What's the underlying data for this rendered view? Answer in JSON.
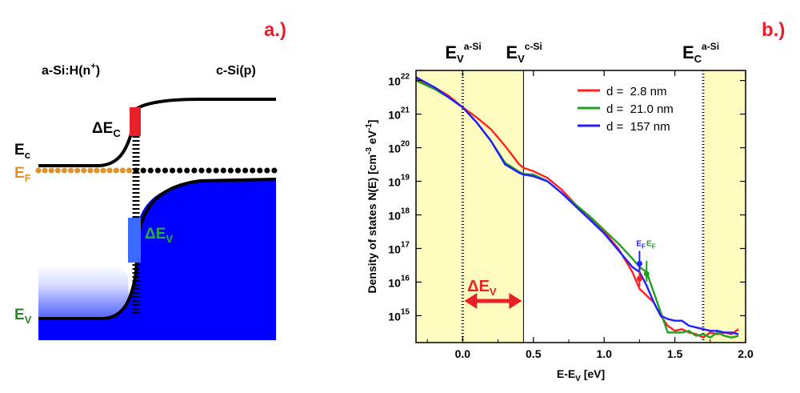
{
  "panel_a": {
    "label": "a.)",
    "left_material": "a-Si:H(n",
    "left_material_sup": "+",
    "left_material_end": ")",
    "right_material": "c-Si(p)",
    "ec_label": "E",
    "ec_sub": "c",
    "ef_label": "E",
    "ef_sub": "F",
    "ev_label": "E",
    "ev_sub": "V",
    "delta_ec": "ΔE",
    "delta_ec_sub": "C",
    "delta_ev": "ΔE",
    "delta_ev_sub": "V",
    "colors": {
      "label_red": "#e8202a",
      "ef_orange": "#e0922a",
      "ev_green": "#2a8a2a",
      "delta_ev_green": "#22b43c",
      "band_blue": "#0000ff",
      "offset_red": "#e8202a"
    }
  },
  "panel_b": {
    "label": "b.)",
    "marker_labels": [
      {
        "main": "E",
        "sub": "V",
        "sup": "a-Si"
      },
      {
        "main": "E",
        "sub": "V",
        "sup": "c-Si"
      },
      {
        "main": "E",
        "sub": "C",
        "sup": "a-Si"
      }
    ],
    "delta_ev": "ΔE",
    "delta_ev_sub": "V",
    "ef_annotation_main": "E",
    "ef_annotation_sub": "F",
    "colors": {
      "shade": "#fffcc0",
      "label_red": "#e8202a",
      "arrow_red": "#e8202a"
    }
  },
  "chart_data": {
    "type": "line",
    "xlabel": "E-E",
    "xlabel_sub": "V",
    "xlabel_unit": " [eV]",
    "ylabel": "Density of states N(E) [cm",
    "ylabel_sup1": "-3",
    "ylabel_mid": " eV",
    "ylabel_sup2": "-1",
    "ylabel_end": "]",
    "xlim": [
      -0.33,
      2.0
    ],
    "ylim_log10": [
      14.2,
      22.3
    ],
    "y_scale": "log",
    "xticks": [
      0.0,
      0.5,
      1.0,
      1.5,
      2.0
    ],
    "xtick_labels": [
      "0.0",
      "0.5",
      "1.0",
      "1.5",
      "2.0"
    ],
    "yticks_exp": [
      15,
      16,
      17,
      18,
      19,
      20,
      21,
      22
    ],
    "ytick_base": "10",
    "shaded_regions": [
      [
        -0.33,
        0.0
      ],
      [
        0.0,
        0.43
      ],
      [
        1.7,
        2.0
      ]
    ],
    "dotted_vlines": [
      0.0,
      1.7
    ],
    "solid_vlines": [
      0.43
    ],
    "delta_ev_arrow": [
      0.0,
      0.43
    ],
    "legend_position": "top-right",
    "series": [
      {
        "name": "d =  2.8 nm",
        "color": "#ff2020",
        "x": [
          -0.33,
          -0.2,
          -0.1,
          0.0,
          0.1,
          0.2,
          0.3,
          0.4,
          0.43,
          0.5,
          0.6,
          0.7,
          0.8,
          0.9,
          1.0,
          1.1,
          1.2,
          1.25,
          1.3,
          1.35,
          1.4,
          1.45,
          1.5,
          1.55,
          1.6,
          1.65,
          1.7,
          1.75,
          1.8,
          1.85,
          1.9,
          1.95
        ],
        "log10y": [
          22.05,
          21.8,
          21.55,
          21.2,
          20.9,
          20.55,
          20.05,
          19.5,
          19.4,
          19.3,
          19.1,
          18.75,
          18.3,
          17.9,
          17.5,
          17.0,
          16.3,
          15.8,
          15.6,
          15.4,
          15.0,
          14.7,
          14.55,
          14.6,
          14.5,
          14.45,
          14.35,
          14.5,
          14.45,
          14.5,
          14.45,
          14.6
        ]
      },
      {
        "name": "d =  21.0 nm",
        "color": "#20a020",
        "x": [
          -0.33,
          -0.2,
          -0.1,
          0.0,
          0.1,
          0.2,
          0.3,
          0.4,
          0.43,
          0.5,
          0.6,
          0.7,
          0.8,
          0.9,
          1.0,
          1.1,
          1.2,
          1.25,
          1.3,
          1.35,
          1.4,
          1.45,
          1.5,
          1.55,
          1.6,
          1.65,
          1.7,
          1.75,
          1.8,
          1.85,
          1.9,
          1.95
        ],
        "log10y": [
          22.0,
          21.75,
          21.5,
          21.2,
          20.75,
          20.2,
          19.55,
          19.28,
          19.22,
          19.2,
          19.0,
          18.65,
          18.3,
          17.95,
          17.55,
          17.15,
          16.7,
          16.45,
          16.3,
          15.7,
          15.1,
          14.5,
          14.5,
          14.5,
          14.55,
          14.4,
          14.45,
          14.35,
          14.5,
          14.4,
          14.35,
          14.4
        ]
      },
      {
        "name": "d =  157 nm",
        "color": "#2020ff",
        "x": [
          -0.33,
          -0.2,
          -0.1,
          0.0,
          0.1,
          0.2,
          0.3,
          0.4,
          0.43,
          0.5,
          0.6,
          0.7,
          0.8,
          0.9,
          1.0,
          1.1,
          1.2,
          1.25,
          1.3,
          1.35,
          1.4,
          1.45,
          1.5,
          1.55,
          1.6,
          1.65,
          1.7,
          1.75,
          1.8,
          1.85,
          1.9,
          1.95
        ],
        "log10y": [
          22.1,
          21.8,
          21.5,
          21.2,
          20.75,
          20.2,
          19.5,
          19.25,
          19.2,
          19.15,
          19.0,
          18.65,
          18.25,
          17.85,
          17.45,
          16.95,
          16.45,
          16.3,
          15.9,
          15.4,
          15.0,
          14.9,
          14.85,
          14.85,
          14.7,
          14.65,
          14.6,
          14.55,
          14.55,
          14.5,
          14.5,
          14.45
        ]
      }
    ],
    "ef_markers": [
      {
        "series": "d =  2.8 nm",
        "x": 1.25,
        "log10y": 16.1
      },
      {
        "series": "d =  157 nm",
        "x": 1.25,
        "log10y": 16.55
      },
      {
        "series": "d =  21.0 nm",
        "x": 1.3,
        "log10y": 16.25
      }
    ]
  }
}
